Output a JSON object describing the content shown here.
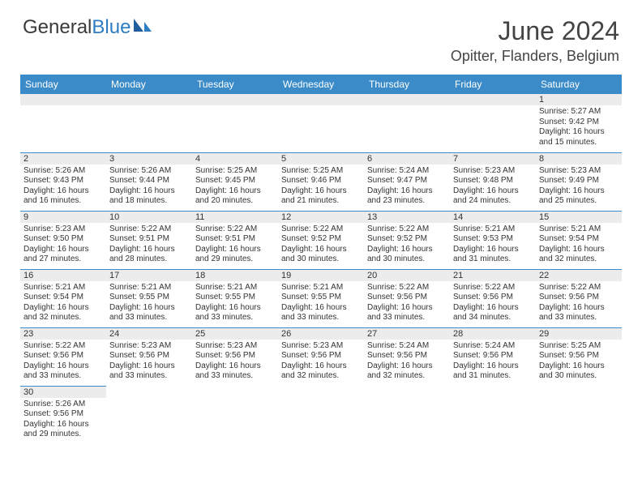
{
  "logo": {
    "text1": "General",
    "text2": "Blue"
  },
  "title": "June 2024",
  "location": "Opitter, Flanders, Belgium",
  "colors": {
    "header_bg": "#3b8bc9",
    "header_text": "#ffffff",
    "daynum_bg": "#ececec",
    "divider": "#3b8bc9",
    "text": "#333333"
  },
  "weekdays": [
    "Sunday",
    "Monday",
    "Tuesday",
    "Wednesday",
    "Thursday",
    "Friday",
    "Saturday"
  ],
  "weeks": [
    [
      null,
      null,
      null,
      null,
      null,
      null,
      {
        "n": "1",
        "r": "Sunrise: 5:27 AM",
        "s": "Sunset: 9:42 PM",
        "d1": "Daylight: 16 hours",
        "d2": "and 15 minutes."
      }
    ],
    [
      {
        "n": "2",
        "r": "Sunrise: 5:26 AM",
        "s": "Sunset: 9:43 PM",
        "d1": "Daylight: 16 hours",
        "d2": "and 16 minutes."
      },
      {
        "n": "3",
        "r": "Sunrise: 5:26 AM",
        "s": "Sunset: 9:44 PM",
        "d1": "Daylight: 16 hours",
        "d2": "and 18 minutes."
      },
      {
        "n": "4",
        "r": "Sunrise: 5:25 AM",
        "s": "Sunset: 9:45 PM",
        "d1": "Daylight: 16 hours",
        "d2": "and 20 minutes."
      },
      {
        "n": "5",
        "r": "Sunrise: 5:25 AM",
        "s": "Sunset: 9:46 PM",
        "d1": "Daylight: 16 hours",
        "d2": "and 21 minutes."
      },
      {
        "n": "6",
        "r": "Sunrise: 5:24 AM",
        "s": "Sunset: 9:47 PM",
        "d1": "Daylight: 16 hours",
        "d2": "and 23 minutes."
      },
      {
        "n": "7",
        "r": "Sunrise: 5:23 AM",
        "s": "Sunset: 9:48 PM",
        "d1": "Daylight: 16 hours",
        "d2": "and 24 minutes."
      },
      {
        "n": "8",
        "r": "Sunrise: 5:23 AM",
        "s": "Sunset: 9:49 PM",
        "d1": "Daylight: 16 hours",
        "d2": "and 25 minutes."
      }
    ],
    [
      {
        "n": "9",
        "r": "Sunrise: 5:23 AM",
        "s": "Sunset: 9:50 PM",
        "d1": "Daylight: 16 hours",
        "d2": "and 27 minutes."
      },
      {
        "n": "10",
        "r": "Sunrise: 5:22 AM",
        "s": "Sunset: 9:51 PM",
        "d1": "Daylight: 16 hours",
        "d2": "and 28 minutes."
      },
      {
        "n": "11",
        "r": "Sunrise: 5:22 AM",
        "s": "Sunset: 9:51 PM",
        "d1": "Daylight: 16 hours",
        "d2": "and 29 minutes."
      },
      {
        "n": "12",
        "r": "Sunrise: 5:22 AM",
        "s": "Sunset: 9:52 PM",
        "d1": "Daylight: 16 hours",
        "d2": "and 30 minutes."
      },
      {
        "n": "13",
        "r": "Sunrise: 5:22 AM",
        "s": "Sunset: 9:52 PM",
        "d1": "Daylight: 16 hours",
        "d2": "and 30 minutes."
      },
      {
        "n": "14",
        "r": "Sunrise: 5:21 AM",
        "s": "Sunset: 9:53 PM",
        "d1": "Daylight: 16 hours",
        "d2": "and 31 minutes."
      },
      {
        "n": "15",
        "r": "Sunrise: 5:21 AM",
        "s": "Sunset: 9:54 PM",
        "d1": "Daylight: 16 hours",
        "d2": "and 32 minutes."
      }
    ],
    [
      {
        "n": "16",
        "r": "Sunrise: 5:21 AM",
        "s": "Sunset: 9:54 PM",
        "d1": "Daylight: 16 hours",
        "d2": "and 32 minutes."
      },
      {
        "n": "17",
        "r": "Sunrise: 5:21 AM",
        "s": "Sunset: 9:55 PM",
        "d1": "Daylight: 16 hours",
        "d2": "and 33 minutes."
      },
      {
        "n": "18",
        "r": "Sunrise: 5:21 AM",
        "s": "Sunset: 9:55 PM",
        "d1": "Daylight: 16 hours",
        "d2": "and 33 minutes."
      },
      {
        "n": "19",
        "r": "Sunrise: 5:21 AM",
        "s": "Sunset: 9:55 PM",
        "d1": "Daylight: 16 hours",
        "d2": "and 33 minutes."
      },
      {
        "n": "20",
        "r": "Sunrise: 5:22 AM",
        "s": "Sunset: 9:56 PM",
        "d1": "Daylight: 16 hours",
        "d2": "and 33 minutes."
      },
      {
        "n": "21",
        "r": "Sunrise: 5:22 AM",
        "s": "Sunset: 9:56 PM",
        "d1": "Daylight: 16 hours",
        "d2": "and 34 minutes."
      },
      {
        "n": "22",
        "r": "Sunrise: 5:22 AM",
        "s": "Sunset: 9:56 PM",
        "d1": "Daylight: 16 hours",
        "d2": "and 33 minutes."
      }
    ],
    [
      {
        "n": "23",
        "r": "Sunrise: 5:22 AM",
        "s": "Sunset: 9:56 PM",
        "d1": "Daylight: 16 hours",
        "d2": "and 33 minutes."
      },
      {
        "n": "24",
        "r": "Sunrise: 5:23 AM",
        "s": "Sunset: 9:56 PM",
        "d1": "Daylight: 16 hours",
        "d2": "and 33 minutes."
      },
      {
        "n": "25",
        "r": "Sunrise: 5:23 AM",
        "s": "Sunset: 9:56 PM",
        "d1": "Daylight: 16 hours",
        "d2": "and 33 minutes."
      },
      {
        "n": "26",
        "r": "Sunrise: 5:23 AM",
        "s": "Sunset: 9:56 PM",
        "d1": "Daylight: 16 hours",
        "d2": "and 32 minutes."
      },
      {
        "n": "27",
        "r": "Sunrise: 5:24 AM",
        "s": "Sunset: 9:56 PM",
        "d1": "Daylight: 16 hours",
        "d2": "and 32 minutes."
      },
      {
        "n": "28",
        "r": "Sunrise: 5:24 AM",
        "s": "Sunset: 9:56 PM",
        "d1": "Daylight: 16 hours",
        "d2": "and 31 minutes."
      },
      {
        "n": "29",
        "r": "Sunrise: 5:25 AM",
        "s": "Sunset: 9:56 PM",
        "d1": "Daylight: 16 hours",
        "d2": "and 30 minutes."
      }
    ],
    [
      {
        "n": "30",
        "r": "Sunrise: 5:26 AM",
        "s": "Sunset: 9:56 PM",
        "d1": "Daylight: 16 hours",
        "d2": "and 29 minutes."
      },
      null,
      null,
      null,
      null,
      null,
      null
    ]
  ]
}
